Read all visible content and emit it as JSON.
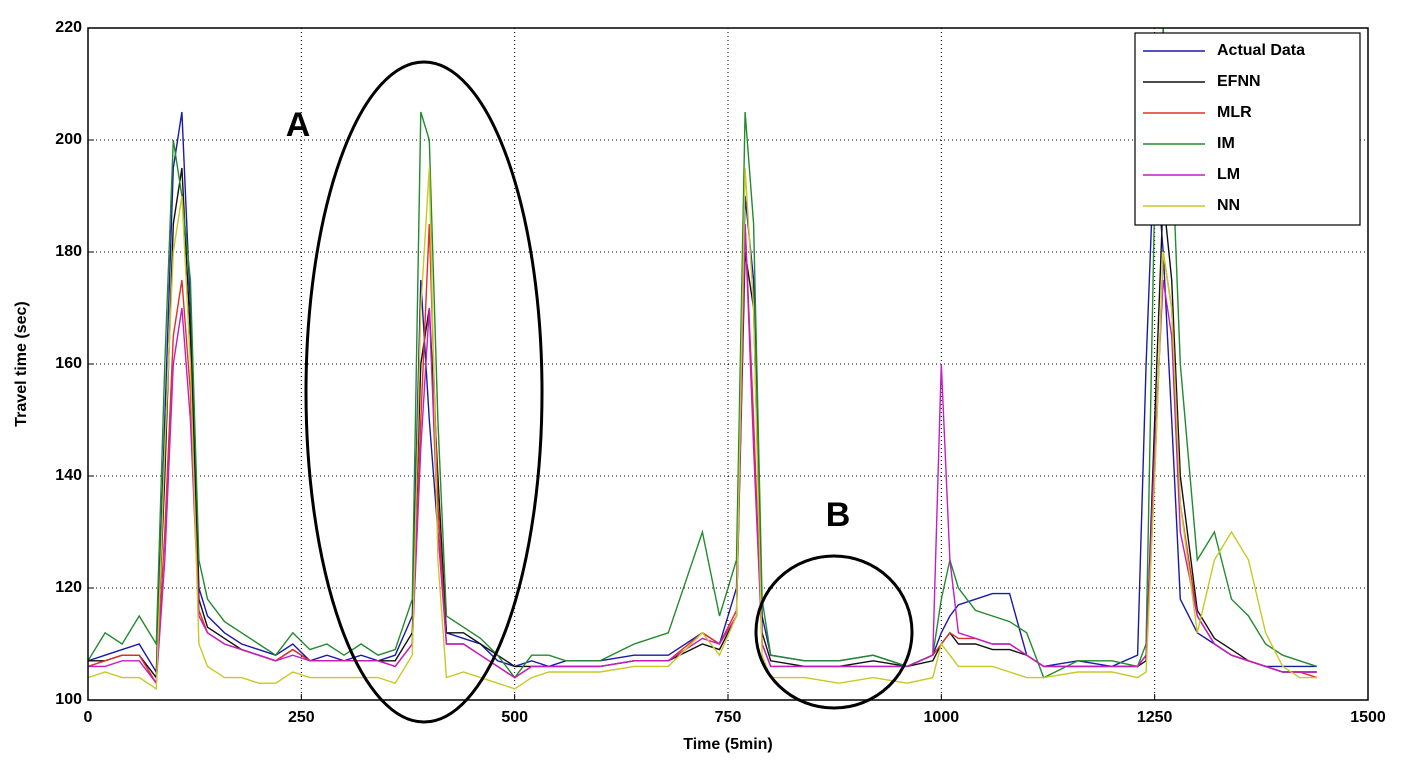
{
  "chart_data": {
    "type": "line",
    "xlabel": "Time (5min)",
    "ylabel": "Travel time (sec)",
    "annotations": [
      "A",
      "B"
    ],
    "xlim": [
      0,
      1500
    ],
    "xticks": [
      0,
      250,
      500,
      750,
      1000,
      1250,
      1500
    ],
    "ylim": [
      100,
      220
    ],
    "yticks": [
      100,
      120,
      140,
      160,
      180,
      200,
      220
    ],
    "grid": true,
    "legend": "upper right",
    "x": [
      0,
      20,
      40,
      60,
      80,
      90,
      100,
      110,
      120,
      130,
      140,
      160,
      180,
      200,
      220,
      240,
      260,
      280,
      300,
      320,
      340,
      360,
      380,
      390,
      400,
      410,
      420,
      440,
      460,
      480,
      500,
      520,
      540,
      560,
      600,
      640,
      680,
      720,
      740,
      760,
      770,
      780,
      790,
      800,
      840,
      880,
      920,
      960,
      990,
      1000,
      1010,
      1020,
      1040,
      1060,
      1080,
      1100,
      1120,
      1160,
      1200,
      1230,
      1240,
      1250,
      1260,
      1270,
      1280,
      1300,
      1320,
      1340,
      1360,
      1380,
      1400,
      1420,
      1440
    ],
    "series": [
      {
        "name": "Actual Data",
        "color": "#1a1aa8",
        "values": [
          107,
          108,
          109,
          110,
          105,
          150,
          195,
          205,
          170,
          120,
          115,
          112,
          110,
          109,
          108,
          110,
          107,
          108,
          107,
          108,
          107,
          108,
          115,
          175,
          150,
          130,
          112,
          111,
          110,
          107,
          106,
          107,
          106,
          107,
          107,
          108,
          108,
          112,
          110,
          120,
          190,
          175,
          115,
          108,
          107,
          107,
          108,
          106,
          108,
          112,
          115,
          117,
          118,
          119,
          119,
          108,
          106,
          107,
          106,
          108,
          160,
          200,
          180,
          150,
          118,
          112,
          110,
          108,
          107,
          106,
          106,
          106,
          106
        ]
      },
      {
        "name": "EFNN",
        "color": "#111111",
        "values": [
          107,
          107,
          108,
          108,
          104,
          140,
          185,
          195,
          165,
          118,
          113,
          111,
          109,
          108,
          107,
          109,
          107,
          107,
          107,
          107,
          107,
          107,
          112,
          160,
          170,
          140,
          112,
          112,
          110,
          108,
          106,
          106,
          106,
          106,
          106,
          107,
          107,
          110,
          109,
          115,
          180,
          170,
          112,
          107,
          106,
          106,
          107,
          106,
          107,
          110,
          112,
          110,
          110,
          109,
          109,
          108,
          106,
          106,
          106,
          106,
          107,
          150,
          190,
          175,
          140,
          116,
          111,
          109,
          107,
          106,
          105,
          105,
          105
        ]
      },
      {
        "name": "MLR",
        "color": "#e0302a",
        "values": [
          106,
          107,
          108,
          108,
          103,
          130,
          165,
          175,
          155,
          116,
          112,
          110,
          109,
          108,
          107,
          109,
          107,
          107,
          107,
          107,
          107,
          106,
          110,
          150,
          185,
          135,
          110,
          110,
          108,
          106,
          104,
          106,
          106,
          106,
          106,
          107,
          107,
          112,
          110,
          116,
          185,
          150,
          110,
          106,
          106,
          106,
          106,
          106,
          108,
          110,
          112,
          111,
          111,
          110,
          110,
          108,
          106,
          106,
          106,
          106,
          108,
          140,
          180,
          170,
          135,
          115,
          110,
          108,
          107,
          106,
          105,
          105,
          104
        ]
      },
      {
        "name": "IM",
        "color": "#238a2e",
        "values": [
          107,
          112,
          110,
          115,
          110,
          160,
          200,
          190,
          175,
          125,
          118,
          114,
          112,
          110,
          108,
          112,
          109,
          110,
          108,
          110,
          108,
          109,
          118,
          205,
          200,
          150,
          115,
          113,
          111,
          108,
          104,
          108,
          108,
          107,
          107,
          110,
          112,
          130,
          115,
          125,
          205,
          185,
          118,
          108,
          107,
          107,
          108,
          106,
          108,
          118,
          125,
          120,
          116,
          115,
          114,
          112,
          104,
          107,
          107,
          106,
          110,
          190,
          220,
          200,
          160,
          125,
          130,
          118,
          115,
          110,
          108,
          107,
          106
        ]
      },
      {
        "name": "LM",
        "color": "#c21ec2",
        "values": [
          106,
          106,
          107,
          107,
          103,
          125,
          160,
          170,
          150,
          115,
          112,
          110,
          109,
          108,
          107,
          108,
          107,
          107,
          107,
          107,
          107,
          106,
          110,
          145,
          170,
          130,
          110,
          110,
          108,
          106,
          104,
          106,
          106,
          106,
          106,
          107,
          107,
          111,
          110,
          115,
          185,
          145,
          110,
          106,
          106,
          106,
          106,
          106,
          108,
          160,
          125,
          112,
          111,
          110,
          110,
          108,
          106,
          106,
          106,
          106,
          108,
          145,
          175,
          165,
          130,
          115,
          110,
          108,
          107,
          106,
          105,
          105,
          105
        ]
      },
      {
        "name": "NN",
        "color": "#c8c828",
        "values": [
          104,
          105,
          104,
          104,
          102,
          145,
          180,
          190,
          160,
          110,
          106,
          104,
          104,
          103,
          103,
          105,
          104,
          104,
          104,
          104,
          104,
          103,
          108,
          170,
          195,
          125,
          104,
          105,
          104,
          103,
          102,
          104,
          105,
          105,
          105,
          106,
          106,
          112,
          108,
          115,
          195,
          170,
          108,
          104,
          104,
          103,
          104,
          103,
          104,
          110,
          108,
          106,
          106,
          106,
          105,
          104,
          104,
          105,
          105,
          104,
          105,
          140,
          180,
          170,
          135,
          112,
          125,
          130,
          125,
          112,
          106,
          104,
          104
        ]
      }
    ]
  }
}
